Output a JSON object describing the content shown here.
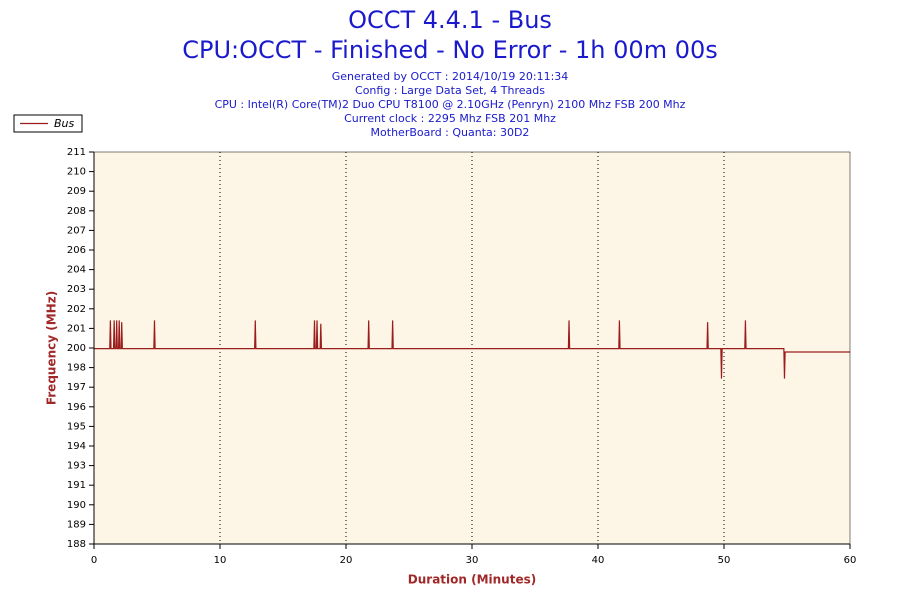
{
  "chart_data": {
    "type": "line",
    "title": "OCCT 4.4.1 - Bus",
    "subtitle": "CPU:OCCT - Finished - No Error - 1h 00m 00s",
    "info": [
      "Generated by OCCT : 2014/10/19 20:11:34",
      "Config : Large Data Set, 4 Threads",
      "CPU : Intel(R) Core(TM)2 Duo CPU T8100 @ 2.10GHz (Penryn) 2100 Mhz FSB 200 Mhz",
      "Current clock : 2295 Mhz FSB 201 Mhz",
      "MotherBoard : Quanta: 30D2"
    ],
    "x_label": "Duration (Minutes)",
    "y_label": "Frequency (MHz)",
    "xlim": [
      0,
      60
    ],
    "xticks": [
      0,
      10,
      20,
      30,
      40,
      50,
      60
    ],
    "ylim": [
      187.84,
      211.44
    ],
    "yticks": [
      {
        "value": 187.84,
        "label": "188"
      },
      {
        "value": 189.02,
        "label": "189"
      },
      {
        "value": 190.2,
        "label": "190"
      },
      {
        "value": 191.38,
        "label": "191"
      },
      {
        "value": 192.56,
        "label": "193"
      },
      {
        "value": 193.74,
        "label": "194"
      },
      {
        "value": 194.92,
        "label": "195"
      },
      {
        "value": 196.1,
        "label": "196"
      },
      {
        "value": 197.28,
        "label": "197"
      },
      {
        "value": 198.46,
        "label": "198"
      },
      {
        "value": 199.64,
        "label": "200"
      },
      {
        "value": 200.82,
        "label": "201"
      },
      {
        "value": 202.0,
        "label": "202"
      },
      {
        "value": 203.18,
        "label": "203"
      },
      {
        "value": 204.36,
        "label": "204"
      },
      {
        "value": 205.54,
        "label": "206"
      },
      {
        "value": 206.72,
        "label": "207"
      },
      {
        "value": 207.9,
        "label": "208"
      },
      {
        "value": 209.08,
        "label": "209"
      },
      {
        "value": 210.26,
        "label": "210"
      },
      {
        "value": 211.44,
        "label": "211"
      }
    ],
    "x_grid": true,
    "legend": "top-left",
    "x": [
      0,
      1.25,
      1.3,
      1.35,
      1.55,
      1.6,
      1.65,
      1.75,
      1.8,
      1.85,
      1.95,
      2.0,
      2.05,
      2.15,
      2.2,
      2.25,
      4.75,
      4.8,
      4.85,
      12.75,
      12.8,
      12.85,
      17.45,
      17.5,
      17.55,
      17.65,
      17.7,
      17.75,
      17.95,
      18.0,
      18.05,
      21.75,
      21.8,
      21.85,
      23.65,
      23.7,
      23.75,
      30,
      37.65,
      37.7,
      37.75,
      41.65,
      41.7,
      41.75,
      48.65,
      48.7,
      48.75,
      49.75,
      49.8,
      49.85,
      51.65,
      51.7,
      51.75,
      54.75,
      54.8,
      54.85,
      60
    ],
    "series": [
      {
        "name": "Bus",
        "color": "#9b1c1c",
        "values": [
          199.6,
          199.6,
          201.3,
          199.6,
          199.6,
          201.3,
          199.6,
          199.6,
          201.3,
          199.6,
          199.6,
          201.3,
          199.6,
          199.6,
          201.2,
          199.6,
          199.6,
          201.3,
          199.6,
          199.6,
          201.3,
          199.6,
          199.6,
          201.3,
          199.6,
          199.6,
          201.3,
          199.6,
          199.6,
          201.1,
          199.6,
          199.6,
          201.3,
          199.6,
          199.6,
          201.3,
          199.6,
          199.6,
          199.6,
          201.3,
          199.6,
          199.6,
          201.3,
          199.6,
          199.6,
          201.2,
          199.6,
          199.6,
          197.8,
          199.6,
          199.6,
          201.3,
          199.6,
          199.6,
          197.8,
          199.4,
          199.4
        ]
      }
    ]
  }
}
